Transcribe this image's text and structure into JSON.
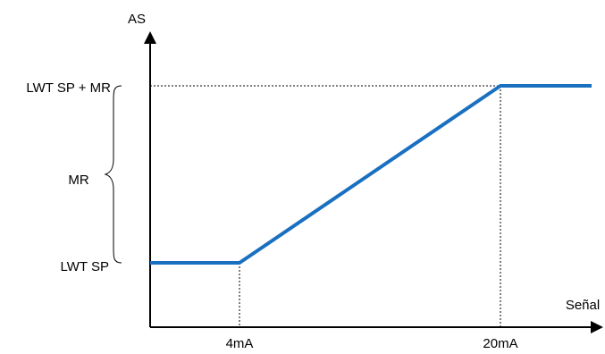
{
  "chart_data": {
    "type": "line",
    "title": "",
    "xlabel": "Señal",
    "ylabel": "AS",
    "x_ticks": [
      "4mA",
      "20mA"
    ],
    "y_ticks": [
      "LWT SP",
      "LWT SP + MR"
    ],
    "brace_label": "MR",
    "series": [
      {
        "color": "#1a70c0",
        "points": [
          {
            "x": "min",
            "y": "LWT SP"
          },
          {
            "x": "4mA",
            "y": "LWT SP"
          },
          {
            "x": "20mA",
            "y": "LWT SP + MR"
          },
          {
            "x": "max",
            "y": "LWT SP + MR"
          }
        ]
      }
    ],
    "grid": false
  }
}
